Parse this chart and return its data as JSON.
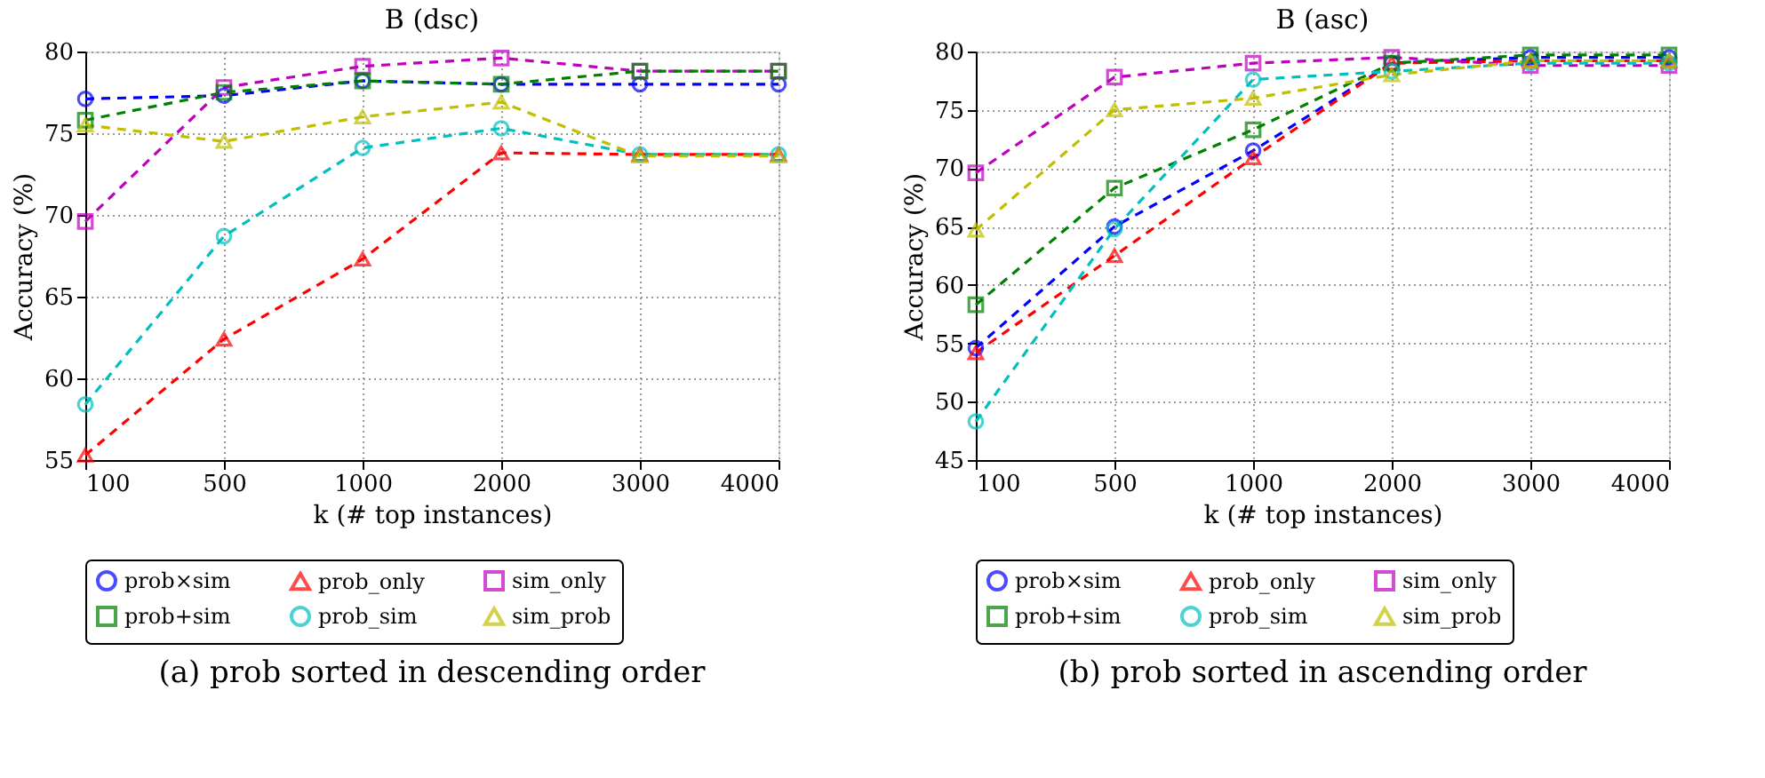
{
  "chart_data": [
    {
      "type": "line",
      "title": "B (dsc)",
      "xlabel": "k (# top instances)",
      "ylabel": "Accuracy (%)",
      "categories": [
        "100",
        "500",
        "1000",
        "2000",
        "3000",
        "4000"
      ],
      "ylim": [
        55,
        80
      ],
      "yticks": [
        55,
        60,
        65,
        70,
        75,
        80
      ],
      "grid": true,
      "legend": "bottom",
      "line_style": "dashed",
      "annotations": [
        "(a) prob sorted in descending order"
      ],
      "series": [
        {
          "name": "prob×sim",
          "color": "#0000ff",
          "marker": "circle",
          "values": [
            77.1,
            77.3,
            78.2,
            78.0,
            78.0,
            78.0
          ]
        },
        {
          "name": "prob_only",
          "color": "#ff0000",
          "marker": "triangle",
          "values": [
            55.3,
            62.4,
            67.3,
            73.8,
            73.7,
            73.7
          ]
        },
        {
          "name": "sim_only",
          "color": "#bf00bf",
          "marker": "square",
          "values": [
            69.6,
            77.8,
            79.1,
            79.6,
            78.8,
            78.8
          ]
        },
        {
          "name": "prob+sim",
          "color": "#008000",
          "marker": "square",
          "values": [
            75.8,
            77.5,
            78.2,
            78.0,
            78.8,
            78.8
          ]
        },
        {
          "name": "prob_sim",
          "color": "#00bfbf",
          "marker": "circle",
          "values": [
            58.4,
            68.7,
            74.1,
            75.3,
            73.7,
            73.7
          ]
        },
        {
          "name": "sim_prob",
          "color": "#bfbf00",
          "marker": "triangle",
          "values": [
            75.5,
            74.5,
            76.0,
            76.9,
            73.6,
            73.6
          ]
        }
      ]
    },
    {
      "type": "line",
      "title": "B (asc)",
      "xlabel": "k (# top instances)",
      "ylabel": "Accuracy (%)",
      "categories": [
        "100",
        "500",
        "1000",
        "2000",
        "3000",
        "4000"
      ],
      "ylim": [
        45,
        80
      ],
      "yticks": [
        45,
        50,
        55,
        60,
        65,
        70,
        75,
        80
      ],
      "grid": true,
      "legend": "bottom",
      "line_style": "dashed",
      "annotations": [
        "(b) prob sorted in ascending order"
      ],
      "series": [
        {
          "name": "prob×sim",
          "color": "#0000ff",
          "marker": "circle",
          "values": [
            54.6,
            65.0,
            71.5,
            79.0,
            79.5,
            79.5
          ]
        },
        {
          "name": "prob_only",
          "color": "#ff0000",
          "marker": "triangle",
          "values": [
            54.2,
            62.5,
            70.9,
            79.0,
            79.2,
            79.2
          ]
        },
        {
          "name": "sim_only",
          "color": "#bf00bf",
          "marker": "square",
          "values": [
            69.6,
            77.8,
            79.0,
            79.5,
            78.8,
            78.8
          ]
        },
        {
          "name": "prob+sim",
          "color": "#008000",
          "marker": "square",
          "values": [
            58.3,
            68.3,
            73.3,
            79.0,
            79.7,
            79.7
          ]
        },
        {
          "name": "prob_sim",
          "color": "#00bfbf",
          "marker": "circle",
          "values": [
            48.3,
            64.8,
            77.6,
            78.3,
            79.0,
            79.0
          ]
        },
        {
          "name": "sim_prob",
          "color": "#bfbf00",
          "marker": "triangle",
          "values": [
            64.7,
            75.0,
            76.0,
            78.0,
            79.2,
            79.2
          ]
        }
      ]
    }
  ]
}
